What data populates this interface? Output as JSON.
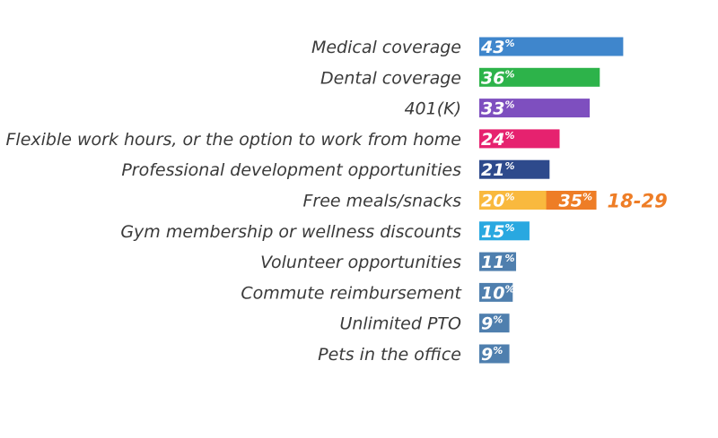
{
  "chart_data": {
    "type": "bar",
    "orientation": "horizontal",
    "title": "",
    "xlabel": "",
    "ylabel": "",
    "grid": false,
    "legend": "none",
    "value_suffix": "%",
    "xlim": [
      0,
      100
    ],
    "categories": [
      "Medical coverage",
      "Dental coverage",
      "401(K)",
      "Flexible work hours, or the option to work from home",
      "Professional development opportunities",
      "Free meals/snacks",
      "Gym membership or wellness discounts",
      "Volunteer opportunities",
      "Commute reimbursement",
      "Unlimited PTO",
      "Pets in the office"
    ],
    "values": [
      43,
      36,
      33,
      24,
      21,
      20,
      15,
      11,
      10,
      9,
      9
    ],
    "colors": [
      "#3f86cc",
      "#2db34a",
      "#7e4fbf",
      "#e6226f",
      "#2e4a8c",
      "#f9b93e",
      "#29a8e0",
      "#4f7fae",
      "#4f7fae",
      "#4f7fae",
      "#4f7fae"
    ],
    "annotation": {
      "category": "Free meals/snacks",
      "value": 35,
      "label": "18-29",
      "color": "#ee7d26"
    }
  }
}
